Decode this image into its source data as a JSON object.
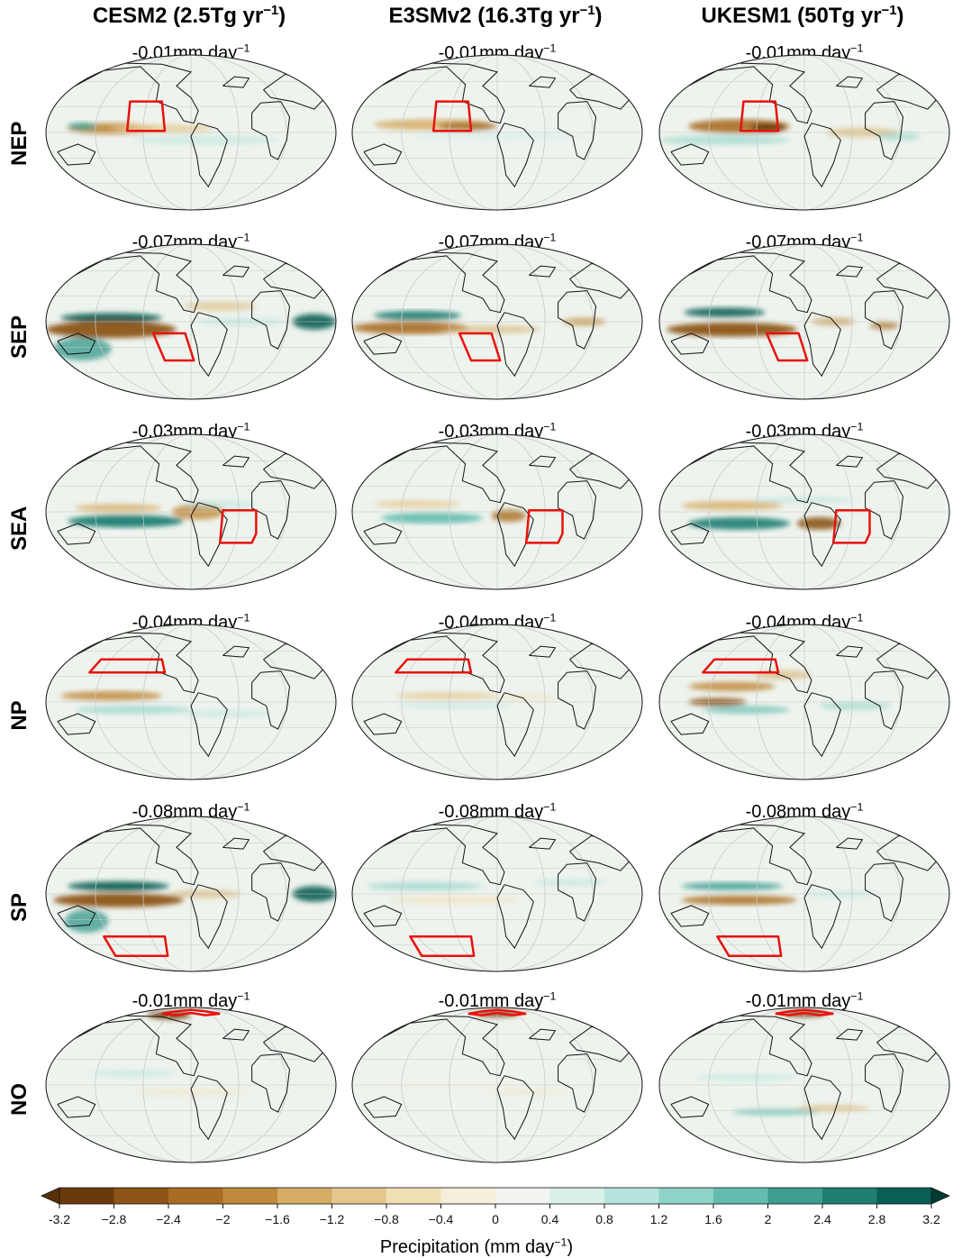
{
  "columns": [
    {
      "name": "CESM2",
      "rate": "(2.5Tg yr",
      "sup": "−1",
      "tail": ")"
    },
    {
      "name": "E3SMv2",
      "rate": "(16.3Tg yr",
      "sup": "−1",
      "tail": ")"
    },
    {
      "name": "UKESM1",
      "rate": "(50Tg yr",
      "sup": "−1",
      "tail": ")"
    }
  ],
  "rows": [
    {
      "label": "NEP",
      "panel_values": [
        "-0.01mm day",
        "-0.01mm day",
        "-0.01mm day"
      ]
    },
    {
      "label": "SEP",
      "panel_values": [
        "-0.07mm day",
        "-0.07mm day",
        "-0.07mm day"
      ]
    },
    {
      "label": "SEA",
      "panel_values": [
        "-0.03mm day",
        "-0.03mm day",
        "-0.03mm day"
      ]
    },
    {
      "label": "NP",
      "panel_values": [
        "-0.04mm day",
        "-0.04mm day",
        "-0.04mm day"
      ]
    },
    {
      "label": "SP",
      "panel_values": [
        "-0.08mm day",
        "-0.08mm day",
        "-0.08mm day"
      ]
    },
    {
      "label": "NO",
      "panel_values": [
        "-0.01mm day",
        "-0.01mm day",
        "-0.01mm day"
      ]
    }
  ],
  "panel_unit_sup": "−1",
  "chart_data": {
    "type": "heatmap",
    "projection": "mollweide",
    "grid": true,
    "colorbar": {
      "label": "Precipitation (mm day",
      "label_sup": "−1",
      "label_tail": ")",
      "ticks": [
        -3.2,
        -2.8,
        -2.4,
        -2,
        -1.6,
        -1.2,
        -0.8,
        -0.4,
        0,
        0.4,
        0.8,
        1.2,
        1.6,
        2,
        2.4,
        2.8,
        3.2
      ],
      "tick_labels": [
        "-3.2",
        "−2.8",
        "−2.4",
        "−2",
        "−1.6",
        "−1.2",
        "−0.8",
        "−0.4",
        "0",
        "0.4",
        "0.8",
        "1.2",
        "1.6",
        "2",
        "2.4",
        "2.8",
        "3.2"
      ],
      "range": [
        -3.2,
        3.2
      ],
      "extend": "both",
      "colors": [
        "#6b3a0c",
        "#8c5416",
        "#a86d22",
        "#c08a3c",
        "#d6ad65",
        "#e6c88e",
        "#f2e0b5",
        "#f6efda",
        "#f1f4ef",
        "#d8efea",
        "#b5e4dc",
        "#8ed3c7",
        "#63bcae",
        "#3d9d90",
        "#1f7e72",
        "#0a5f55"
      ],
      "extend_low_color": "#5a2f08",
      "extend_high_color": "#003c30"
    },
    "panels": [
      {
        "model": "CESM2",
        "region": "NEP",
        "value": -0.01
      },
      {
        "model": "E3SMv2",
        "region": "NEP",
        "value": -0.01
      },
      {
        "model": "UKESM1",
        "region": "NEP",
        "value": -0.01
      },
      {
        "model": "CESM2",
        "region": "SEP",
        "value": -0.07
      },
      {
        "model": "E3SMv2",
        "region": "SEP",
        "value": -0.07
      },
      {
        "model": "UKESM1",
        "region": "SEP",
        "value": -0.07
      },
      {
        "model": "CESM2",
        "region": "SEA",
        "value": -0.03
      },
      {
        "model": "E3SMv2",
        "region": "SEA",
        "value": -0.03
      },
      {
        "model": "UKESM1",
        "region": "SEA",
        "value": -0.03
      },
      {
        "model": "CESM2",
        "region": "NP",
        "value": -0.04
      },
      {
        "model": "E3SMv2",
        "region": "NP",
        "value": -0.04
      },
      {
        "model": "UKESM1",
        "region": "NP",
        "value": -0.04
      },
      {
        "model": "CESM2",
        "region": "SP",
        "value": -0.08
      },
      {
        "model": "E3SMv2",
        "region": "SP",
        "value": -0.08
      },
      {
        "model": "UKESM1",
        "region": "SP",
        "value": -0.08
      },
      {
        "model": "CESM2",
        "region": "NO",
        "value": -0.01
      },
      {
        "model": "E3SMv2",
        "region": "NO",
        "value": -0.01
      },
      {
        "model": "UKESM1",
        "region": "NO",
        "value": -0.01
      }
    ]
  }
}
